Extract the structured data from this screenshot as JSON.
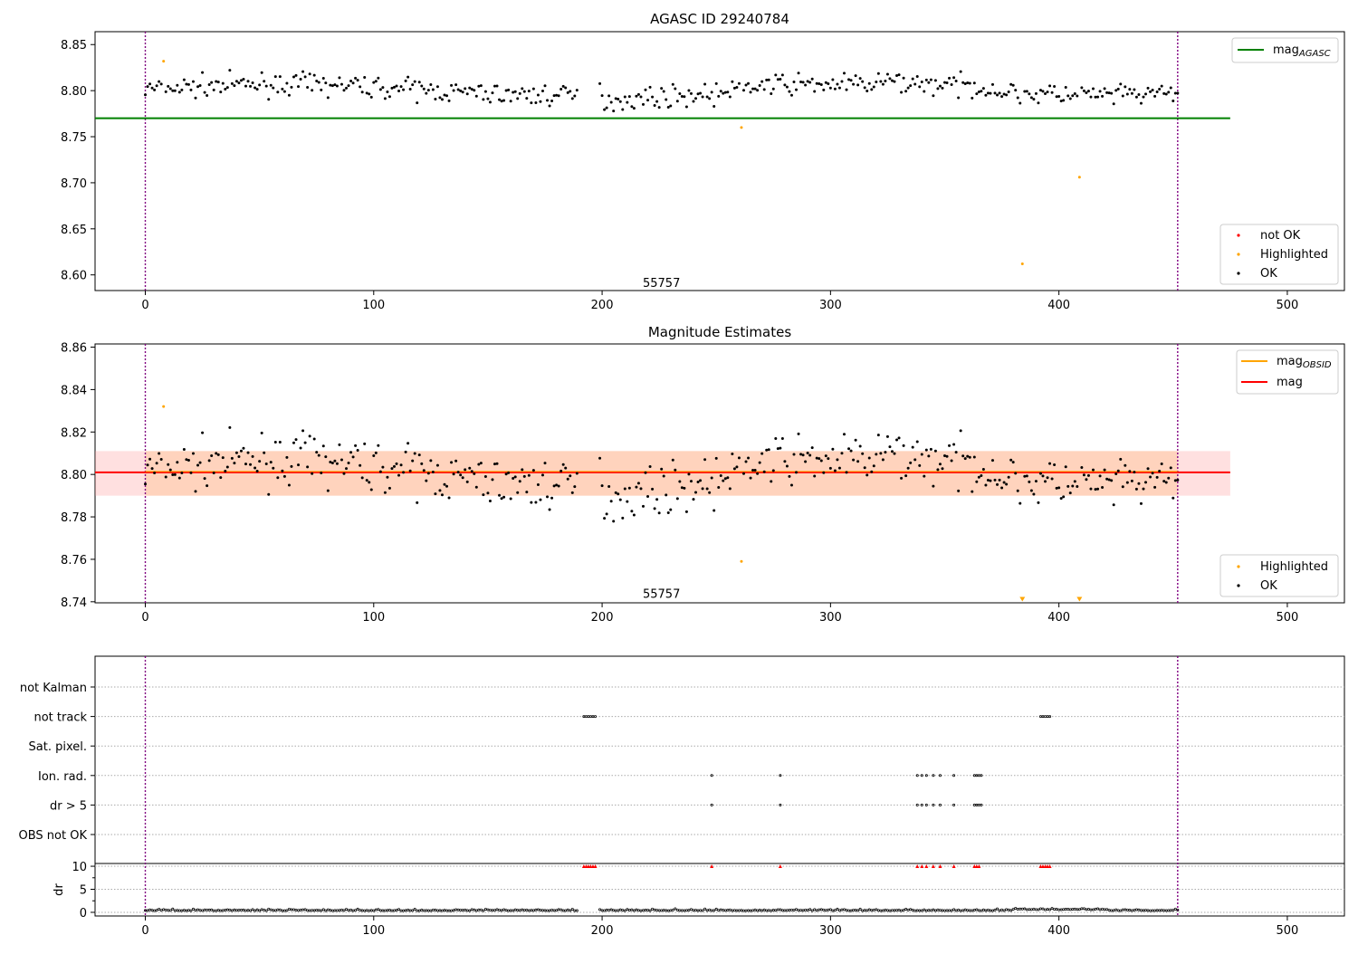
{
  "chart_data": [
    {
      "type": "scatter",
      "title": "AGASC ID 29240784",
      "xlim": [
        -22,
        525
      ],
      "ylim": [
        8.583,
        8.864
      ],
      "xticks": [
        0,
        100,
        200,
        300,
        400,
        500
      ],
      "yticks": [
        8.6,
        8.65,
        8.7,
        8.75,
        8.8,
        8.85
      ],
      "ytick_labels": [
        "8.60",
        "8.65",
        "8.70",
        "8.75",
        "8.80",
        "8.85"
      ],
      "annotation": {
        "text": "55757",
        "x": 226,
        "y": 8.592
      },
      "vlines": [
        0,
        452
      ],
      "vline_color": "#800080",
      "hline": {
        "y": 8.77,
        "x": [
          -22,
          475
        ],
        "color": "#008000"
      },
      "ok_color": "#000000",
      "highlight_color": "#ffa500",
      "notok_color": "#ff0000",
      "highlighted_points": [
        [
          8,
          8.832
        ],
        [
          261,
          8.76
        ],
        [
          384,
          8.612
        ],
        [
          409,
          8.706
        ]
      ],
      "ok_mean": 8.801,
      "ok_spread": 0.01,
      "gaps": [
        [
          190,
          198
        ]
      ],
      "legend_top": {
        "position": "top-right",
        "items": [
          {
            "label": "mag",
            "sub": "AGASC",
            "color": "#008000"
          }
        ]
      },
      "legend_bottom": {
        "position": "lower-right",
        "items": [
          {
            "label": "not OK",
            "color": "#ff0000"
          },
          {
            "label": "Highlighted",
            "color": "#ffa500"
          },
          {
            "label": "OK",
            "color": "#000000"
          }
        ]
      }
    },
    {
      "type": "scatter",
      "title": "Magnitude Estimates",
      "xlim": [
        -22,
        525
      ],
      "ylim": [
        8.7395,
        8.8615
      ],
      "xticks": [
        0,
        100,
        200,
        300,
        400,
        500
      ],
      "yticks": [
        8.74,
        8.76,
        8.78,
        8.8,
        8.82,
        8.84,
        8.86
      ],
      "ytick_labels": [
        "8.74",
        "8.76",
        "8.78",
        "8.80",
        "8.82",
        "8.84",
        "8.86"
      ],
      "annotation": {
        "text": "55757",
        "x": 226,
        "y": 8.744
      },
      "vlines": [
        0,
        452
      ],
      "mag_line": {
        "y": 8.801,
        "x": [
          -22,
          475
        ],
        "color": "#ff0000"
      },
      "mag_band": {
        "y": [
          8.79,
          8.811
        ],
        "color": "#ff9999"
      },
      "obsid_band": {
        "y": [
          8.79,
          8.811
        ],
        "x": [
          0,
          452
        ],
        "color": "#ffb66e"
      },
      "highlighted_points": [
        [
          8,
          8.832
        ],
        [
          261,
          8.759
        ]
      ],
      "offscale_markers": [
        [
          384,
          8.741
        ],
        [
          409,
          8.741
        ]
      ],
      "legend_top": {
        "position": "top-right",
        "items": [
          {
            "label": "mag",
            "sub": "OBSID",
            "color": "#ffa500"
          },
          {
            "label": "mag",
            "sub": "",
            "color": "#ff0000"
          }
        ]
      },
      "legend_bottom": {
        "position": "lower-right",
        "items": [
          {
            "label": "Highlighted",
            "color": "#ffa500"
          },
          {
            "label": "OK",
            "color": "#000000"
          }
        ]
      }
    },
    {
      "type": "scatter",
      "title": "",
      "xlim": [
        -22,
        525
      ],
      "xticks": [
        0,
        100,
        200,
        300,
        400,
        500
      ],
      "flag_categories": [
        "not Kalman",
        "not track",
        "Sat. pixel.",
        "Ion. rad.",
        "dr > 5",
        "OBS not OK"
      ],
      "flag_points": {
        "not track": [
          192,
          193,
          194,
          195,
          196,
          197,
          392,
          393,
          394,
          395,
          396
        ],
        "Ion. rad.": [
          248,
          278,
          338,
          340,
          342,
          345,
          348,
          354,
          363,
          364,
          365,
          366
        ],
        "dr > 5": [
          248,
          278,
          338,
          340,
          342,
          345,
          348,
          354,
          363,
          364,
          365,
          366
        ]
      },
      "dr": {
        "ylabel": "dr",
        "ylim": [
          -0.4,
          10.6
        ],
        "yticks": [
          0,
          5,
          10
        ],
        "ytick_labels": [
          "0",
          "5",
          "10"
        ],
        "clipped_value": 10,
        "clipped_x": [
          192,
          193,
          194,
          195,
          196,
          197,
          248,
          278,
          338,
          340,
          342,
          345,
          348,
          354,
          363,
          364,
          365,
          392,
          393,
          394,
          395,
          396
        ],
        "baseline_mean": 0.35
      },
      "vlines": [
        0,
        452
      ]
    }
  ]
}
